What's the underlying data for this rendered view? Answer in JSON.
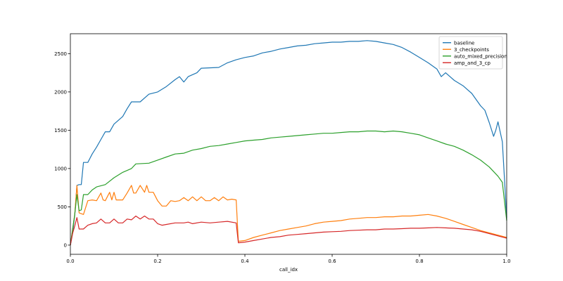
{
  "chart_data": {
    "type": "line",
    "xlabel": "call_idx",
    "ylabel": "",
    "title": "",
    "xlim": [
      0.0,
      1.0
    ],
    "ylim": [
      -120,
      2760
    ],
    "xticks": [
      "0.0",
      "0.2",
      "0.4",
      "0.6",
      "0.8",
      "1.0"
    ],
    "yticks": [
      "0",
      "500",
      "1000",
      "1500",
      "2000",
      "2500"
    ],
    "legend_position": "top-right",
    "grid": false,
    "series": [
      {
        "name": "baseline",
        "color": "#1f77b4",
        "points": [
          [
            0.0,
            0
          ],
          [
            0.005,
            150
          ],
          [
            0.01,
            390
          ],
          [
            0.015,
            780
          ],
          [
            0.02,
            790
          ],
          [
            0.025,
            790
          ],
          [
            0.03,
            1080
          ],
          [
            0.04,
            1080
          ],
          [
            0.05,
            1190
          ],
          [
            0.06,
            1280
          ],
          [
            0.07,
            1380
          ],
          [
            0.08,
            1480
          ],
          [
            0.09,
            1480
          ],
          [
            0.1,
            1580
          ],
          [
            0.12,
            1680
          ],
          [
            0.13,
            1780
          ],
          [
            0.14,
            1870
          ],
          [
            0.16,
            1870
          ],
          [
            0.18,
            1970
          ],
          [
            0.2,
            2000
          ],
          [
            0.22,
            2070
          ],
          [
            0.24,
            2160
          ],
          [
            0.25,
            2200
          ],
          [
            0.26,
            2130
          ],
          [
            0.27,
            2200
          ],
          [
            0.29,
            2250
          ],
          [
            0.3,
            2310
          ],
          [
            0.34,
            2320
          ],
          [
            0.36,
            2380
          ],
          [
            0.38,
            2420
          ],
          [
            0.4,
            2450
          ],
          [
            0.42,
            2470
          ],
          [
            0.44,
            2510
          ],
          [
            0.46,
            2530
          ],
          [
            0.48,
            2560
          ],
          [
            0.5,
            2580
          ],
          [
            0.52,
            2600
          ],
          [
            0.54,
            2610
          ],
          [
            0.56,
            2630
          ],
          [
            0.58,
            2640
          ],
          [
            0.6,
            2650
          ],
          [
            0.62,
            2650
          ],
          [
            0.64,
            2660
          ],
          [
            0.66,
            2660
          ],
          [
            0.68,
            2670
          ],
          [
            0.7,
            2660
          ],
          [
            0.72,
            2640
          ],
          [
            0.74,
            2620
          ],
          [
            0.76,
            2580
          ],
          [
            0.78,
            2520
          ],
          [
            0.8,
            2450
          ],
          [
            0.82,
            2380
          ],
          [
            0.84,
            2300
          ],
          [
            0.85,
            2200
          ],
          [
            0.86,
            2250
          ],
          [
            0.87,
            2200
          ],
          [
            0.88,
            2150
          ],
          [
            0.9,
            2080
          ],
          [
            0.92,
            1980
          ],
          [
            0.94,
            1820
          ],
          [
            0.95,
            1760
          ],
          [
            0.96,
            1600
          ],
          [
            0.97,
            1420
          ],
          [
            0.975,
            1500
          ],
          [
            0.98,
            1610
          ],
          [
            0.99,
            1350
          ],
          [
            1.0,
            360
          ]
        ]
      },
      {
        "name": "3_checkpoints",
        "color": "#ff7f0e",
        "points": [
          [
            0.0,
            0
          ],
          [
            0.005,
            200
          ],
          [
            0.01,
            400
          ],
          [
            0.015,
            780
          ],
          [
            0.02,
            420
          ],
          [
            0.03,
            400
          ],
          [
            0.04,
            580
          ],
          [
            0.05,
            590
          ],
          [
            0.06,
            580
          ],
          [
            0.07,
            680
          ],
          [
            0.075,
            590
          ],
          [
            0.08,
            580
          ],
          [
            0.09,
            690
          ],
          [
            0.095,
            590
          ],
          [
            0.1,
            690
          ],
          [
            0.105,
            590
          ],
          [
            0.12,
            590
          ],
          [
            0.13,
            680
          ],
          [
            0.14,
            780
          ],
          [
            0.145,
            680
          ],
          [
            0.15,
            680
          ],
          [
            0.16,
            780
          ],
          [
            0.17,
            690
          ],
          [
            0.175,
            780
          ],
          [
            0.18,
            690
          ],
          [
            0.19,
            690
          ],
          [
            0.2,
            580
          ],
          [
            0.21,
            510
          ],
          [
            0.22,
            510
          ],
          [
            0.23,
            580
          ],
          [
            0.24,
            570
          ],
          [
            0.25,
            580
          ],
          [
            0.26,
            620
          ],
          [
            0.27,
            580
          ],
          [
            0.28,
            630
          ],
          [
            0.29,
            580
          ],
          [
            0.3,
            630
          ],
          [
            0.31,
            580
          ],
          [
            0.32,
            580
          ],
          [
            0.33,
            620
          ],
          [
            0.34,
            580
          ],
          [
            0.35,
            630
          ],
          [
            0.36,
            590
          ],
          [
            0.37,
            600
          ],
          [
            0.38,
            590
          ],
          [
            0.385,
            50
          ],
          [
            0.4,
            60
          ],
          [
            0.42,
            100
          ],
          [
            0.44,
            130
          ],
          [
            0.46,
            160
          ],
          [
            0.48,
            190
          ],
          [
            0.5,
            210
          ],
          [
            0.52,
            230
          ],
          [
            0.54,
            250
          ],
          [
            0.56,
            280
          ],
          [
            0.58,
            300
          ],
          [
            0.6,
            310
          ],
          [
            0.62,
            320
          ],
          [
            0.64,
            340
          ],
          [
            0.66,
            350
          ],
          [
            0.68,
            360
          ],
          [
            0.7,
            360
          ],
          [
            0.72,
            370
          ],
          [
            0.74,
            370
          ],
          [
            0.76,
            380
          ],
          [
            0.78,
            380
          ],
          [
            0.8,
            390
          ],
          [
            0.82,
            400
          ],
          [
            0.84,
            380
          ],
          [
            0.86,
            350
          ],
          [
            0.88,
            310
          ],
          [
            0.9,
            270
          ],
          [
            0.92,
            230
          ],
          [
            0.94,
            190
          ],
          [
            0.96,
            160
          ],
          [
            0.98,
            130
          ],
          [
            1.0,
            100
          ]
        ]
      },
      {
        "name": "auto_mixed_precision",
        "color": "#2ca02c",
        "points": [
          [
            0.0,
            0
          ],
          [
            0.005,
            200
          ],
          [
            0.01,
            400
          ],
          [
            0.015,
            660
          ],
          [
            0.02,
            450
          ],
          [
            0.025,
            460
          ],
          [
            0.03,
            660
          ],
          [
            0.04,
            660
          ],
          [
            0.05,
            720
          ],
          [
            0.06,
            760
          ],
          [
            0.08,
            790
          ],
          [
            0.1,
            880
          ],
          [
            0.12,
            950
          ],
          [
            0.14,
            1000
          ],
          [
            0.15,
            1060
          ],
          [
            0.18,
            1070
          ],
          [
            0.2,
            1110
          ],
          [
            0.22,
            1150
          ],
          [
            0.24,
            1190
          ],
          [
            0.26,
            1200
          ],
          [
            0.28,
            1240
          ],
          [
            0.3,
            1260
          ],
          [
            0.32,
            1290
          ],
          [
            0.34,
            1300
          ],
          [
            0.36,
            1320
          ],
          [
            0.38,
            1340
          ],
          [
            0.4,
            1360
          ],
          [
            0.42,
            1370
          ],
          [
            0.44,
            1380
          ],
          [
            0.46,
            1400
          ],
          [
            0.48,
            1410
          ],
          [
            0.5,
            1420
          ],
          [
            0.52,
            1430
          ],
          [
            0.54,
            1440
          ],
          [
            0.56,
            1450
          ],
          [
            0.58,
            1460
          ],
          [
            0.6,
            1460
          ],
          [
            0.62,
            1470
          ],
          [
            0.64,
            1480
          ],
          [
            0.66,
            1480
          ],
          [
            0.68,
            1490
          ],
          [
            0.7,
            1490
          ],
          [
            0.72,
            1480
          ],
          [
            0.74,
            1490
          ],
          [
            0.76,
            1480
          ],
          [
            0.78,
            1460
          ],
          [
            0.8,
            1440
          ],
          [
            0.82,
            1400
          ],
          [
            0.84,
            1360
          ],
          [
            0.86,
            1320
          ],
          [
            0.88,
            1290
          ],
          [
            0.9,
            1240
          ],
          [
            0.92,
            1180
          ],
          [
            0.94,
            1110
          ],
          [
            0.96,
            1020
          ],
          [
            0.98,
            900
          ],
          [
            0.99,
            820
          ],
          [
            1.0,
            320
          ]
        ]
      },
      {
        "name": "amp_and_3_cp",
        "color": "#d62728",
        "points": [
          [
            0.0,
            0
          ],
          [
            0.005,
            150
          ],
          [
            0.01,
            250
          ],
          [
            0.015,
            360
          ],
          [
            0.02,
            210
          ],
          [
            0.03,
            210
          ],
          [
            0.04,
            260
          ],
          [
            0.05,
            280
          ],
          [
            0.06,
            290
          ],
          [
            0.07,
            340
          ],
          [
            0.08,
            290
          ],
          [
            0.09,
            290
          ],
          [
            0.1,
            340
          ],
          [
            0.11,
            290
          ],
          [
            0.12,
            290
          ],
          [
            0.13,
            340
          ],
          [
            0.14,
            330
          ],
          [
            0.15,
            380
          ],
          [
            0.16,
            340
          ],
          [
            0.17,
            380
          ],
          [
            0.18,
            340
          ],
          [
            0.19,
            340
          ],
          [
            0.2,
            280
          ],
          [
            0.21,
            260
          ],
          [
            0.22,
            270
          ],
          [
            0.24,
            290
          ],
          [
            0.26,
            290
          ],
          [
            0.27,
            300
          ],
          [
            0.28,
            280
          ],
          [
            0.3,
            300
          ],
          [
            0.32,
            290
          ],
          [
            0.34,
            300
          ],
          [
            0.36,
            310
          ],
          [
            0.38,
            290
          ],
          [
            0.385,
            30
          ],
          [
            0.4,
            40
          ],
          [
            0.42,
            60
          ],
          [
            0.44,
            80
          ],
          [
            0.46,
            100
          ],
          [
            0.48,
            110
          ],
          [
            0.5,
            130
          ],
          [
            0.52,
            140
          ],
          [
            0.54,
            150
          ],
          [
            0.56,
            160
          ],
          [
            0.58,
            170
          ],
          [
            0.6,
            175
          ],
          [
            0.62,
            180
          ],
          [
            0.64,
            190
          ],
          [
            0.66,
            195
          ],
          [
            0.68,
            200
          ],
          [
            0.7,
            200
          ],
          [
            0.72,
            210
          ],
          [
            0.74,
            210
          ],
          [
            0.76,
            215
          ],
          [
            0.78,
            220
          ],
          [
            0.8,
            220
          ],
          [
            0.82,
            225
          ],
          [
            0.84,
            230
          ],
          [
            0.86,
            225
          ],
          [
            0.88,
            220
          ],
          [
            0.9,
            210
          ],
          [
            0.92,
            200
          ],
          [
            0.94,
            180
          ],
          [
            0.96,
            150
          ],
          [
            0.98,
            120
          ],
          [
            1.0,
            90
          ]
        ]
      }
    ]
  }
}
